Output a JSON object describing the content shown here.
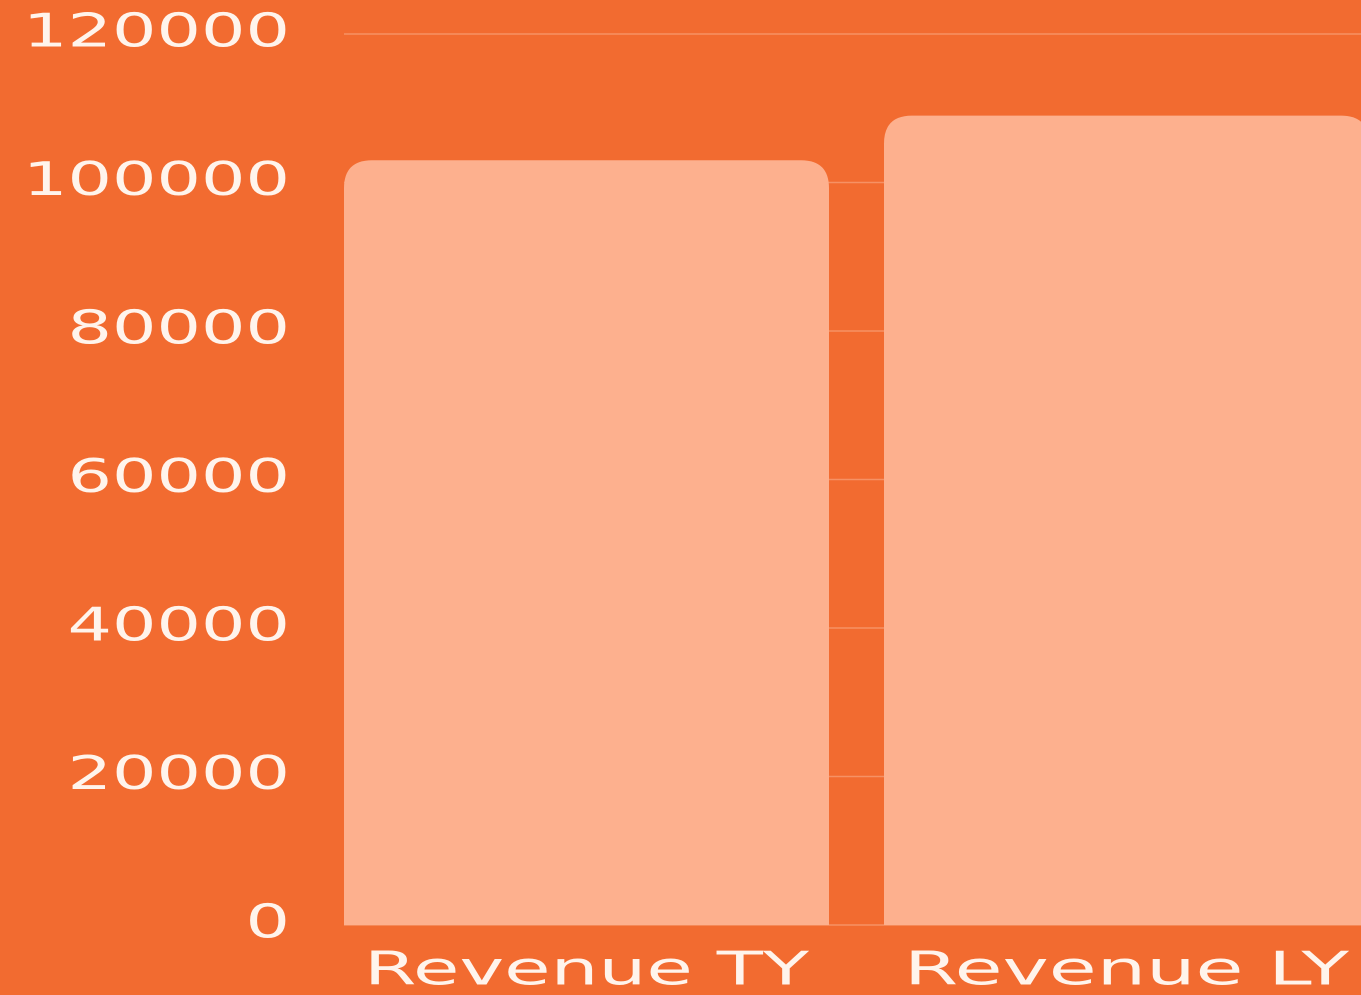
{
  "chart_data": {
    "type": "bar",
    "categories": [
      "Revenue TY",
      "Revenue LY"
    ],
    "values": [
      103000,
      109000
    ],
    "color": "#fdb08e",
    "ylim": [
      0,
      120000
    ],
    "yticks": [
      0,
      20000,
      40000,
      60000,
      80000,
      100000,
      120000
    ],
    "grid": true
  }
}
